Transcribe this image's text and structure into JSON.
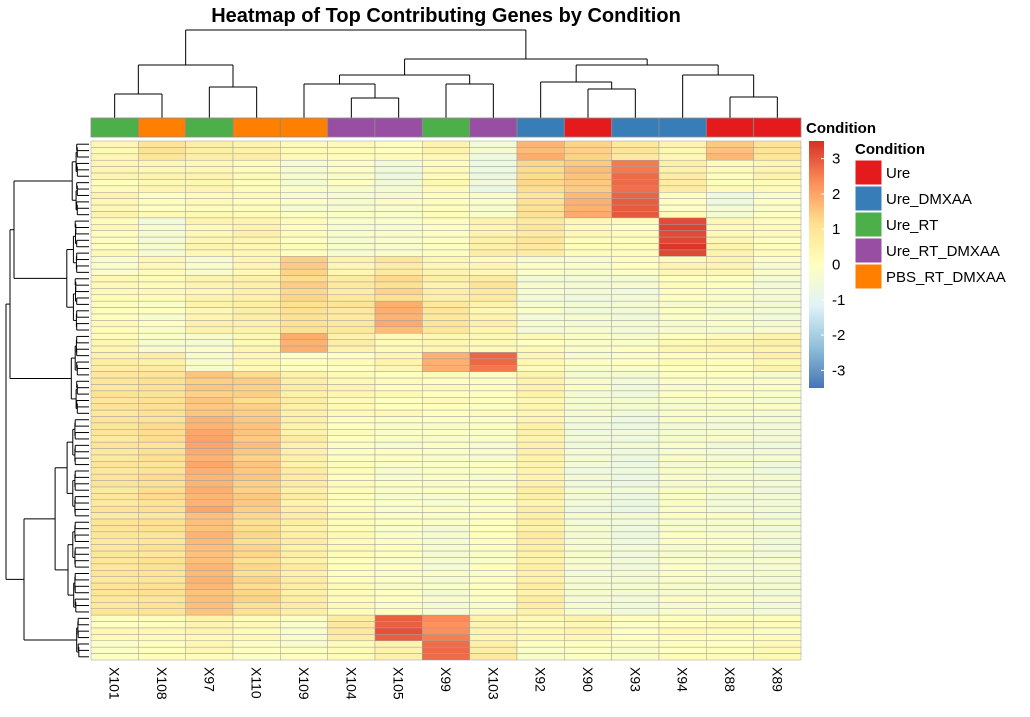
{
  "chart_data": {
    "type": "heatmap",
    "title": "Heatmap of Top Contributing Genes by Condition",
    "columns": [
      "X101",
      "X108",
      "X97",
      "X110",
      "X109",
      "X104",
      "X105",
      "X99",
      "X103",
      "X92",
      "X90",
      "X93",
      "X94",
      "X88",
      "X89"
    ],
    "column_conditions": [
      "Ure_RT",
      "PBS_RT_DMXAA",
      "Ure_RT",
      "PBS_RT_DMXAA",
      "PBS_RT_DMXAA",
      "Ure_RT_DMXAA",
      "Ure_RT_DMXAA",
      "Ure_RT",
      "Ure_RT_DMXAA",
      "Ure_DMXAA",
      "Ure",
      "Ure_DMXAA",
      "Ure_DMXAA",
      "Ure",
      "Ure"
    ],
    "annotation_title": "Condition",
    "annotation_legend": [
      {
        "label": "Ure",
        "color": "#E41A1C"
      },
      {
        "label": "Ure_DMXAA",
        "color": "#377EB8"
      },
      {
        "label": "Ure_RT",
        "color": "#4DAF4A"
      },
      {
        "label": "Ure_RT_DMXAA",
        "color": "#984EA3"
      },
      {
        "label": "PBS_RT_DMXAA",
        "color": "#FF7F00"
      }
    ],
    "colorbar": {
      "ticks": [
        3,
        2,
        1,
        0,
        -1,
        -2,
        -3
      ],
      "range": [
        -3.5,
        3.5
      ],
      "colors": [
        "#4575B4",
        "#91BFDB",
        "#E0F3F8",
        "#FFFFBF",
        "#FEE090",
        "#FC8D59",
        "#D73027"
      ]
    },
    "row_blocks": [
      {
        "rows": 3,
        "values": [
          0.3,
          1.0,
          0.7,
          0.5,
          0.2,
          0.2,
          0.1,
          0.3,
          -0.5,
          1.8,
          1.4,
          0.8,
          0.4,
          1.6,
          1.0
        ]
      },
      {
        "rows": 5,
        "values": [
          0.2,
          0.3,
          0.3,
          0.1,
          -0.3,
          -0.2,
          -0.5,
          0.2,
          -0.6,
          1.3,
          1.6,
          2.7,
          0.6,
          0.1,
          0.3
        ]
      },
      {
        "rows": 4,
        "values": [
          0.4,
          0.1,
          0.2,
          0.2,
          -0.2,
          -0.3,
          -0.2,
          0.1,
          -0.3,
          1.0,
          1.8,
          3.0,
          0.0,
          -0.5,
          -0.2
        ]
      },
      {
        "rows": 6,
        "values": [
          0.1,
          -0.4,
          0.3,
          0.4,
          0.1,
          -0.2,
          -0.3,
          0.0,
          0.5,
          0.8,
          0.2,
          0.1,
          3.3,
          0.3,
          0.1
        ]
      },
      {
        "rows": 3,
        "values": [
          -0.3,
          0.2,
          -0.2,
          0.3,
          1.5,
          0.4,
          0.8,
          0.3,
          0.2,
          -0.2,
          -0.3,
          0.0,
          0.3,
          0.4,
          -0.2
        ]
      },
      {
        "rows": 4,
        "values": [
          0.3,
          0.2,
          0.4,
          0.5,
          1.3,
          0.7,
          1.2,
          0.6,
          0.9,
          -0.4,
          -0.5,
          -0.4,
          0.1,
          -0.1,
          -0.3
        ]
      },
      {
        "rows": 5,
        "values": [
          0.1,
          -0.1,
          0.4,
          0.6,
          1.1,
          0.9,
          1.8,
          0.9,
          0.4,
          -0.3,
          -0.4,
          -0.5,
          -0.2,
          -0.3,
          -0.4
        ]
      },
      {
        "rows": 3,
        "values": [
          0.2,
          -0.2,
          -0.3,
          0.3,
          1.8,
          0.6,
          0.3,
          0.4,
          0.2,
          0.1,
          -0.2,
          -0.1,
          0.2,
          0.3,
          0.5
        ]
      },
      {
        "rows": 3,
        "values": [
          0.6,
          0.6,
          -0.2,
          0.2,
          0.0,
          0.0,
          0.4,
          1.9,
          2.7,
          0.2,
          -0.2,
          -0.1,
          0.1,
          0.0,
          0.4
        ]
      },
      {
        "rows": 7,
        "values": [
          0.9,
          1.1,
          1.5,
          1.3,
          0.6,
          0.3,
          0.1,
          0.1,
          0.0,
          0.4,
          -0.3,
          -0.4,
          -0.2,
          -0.2,
          -0.3
        ]
      },
      {
        "rows": 15,
        "values": [
          0.9,
          1.1,
          1.9,
          1.5,
          0.6,
          0.0,
          -0.2,
          -0.2,
          -0.2,
          0.5,
          -0.5,
          -0.6,
          -0.3,
          -0.4,
          -0.5
        ]
      },
      {
        "rows": 16,
        "values": [
          0.9,
          1.0,
          1.7,
          1.2,
          0.6,
          0.1,
          -0.1,
          -0.3,
          -0.1,
          0.6,
          -0.4,
          -0.5,
          -0.2,
          -0.3,
          -0.4
        ]
      },
      {
        "rows": 4,
        "values": [
          0.1,
          0.2,
          0.3,
          0.1,
          -0.1,
          0.8,
          3.0,
          2.4,
          0.5,
          0.2,
          0.4,
          0.0,
          0.1,
          0.1,
          0.0
        ]
      },
      {
        "rows": 3,
        "values": [
          -0.2,
          0.0,
          0.2,
          0.0,
          -0.2,
          0.2,
          0.4,
          2.8,
          0.7,
          -0.1,
          -0.1,
          -0.1,
          0.1,
          0.1,
          0.1
        ]
      }
    ]
  }
}
